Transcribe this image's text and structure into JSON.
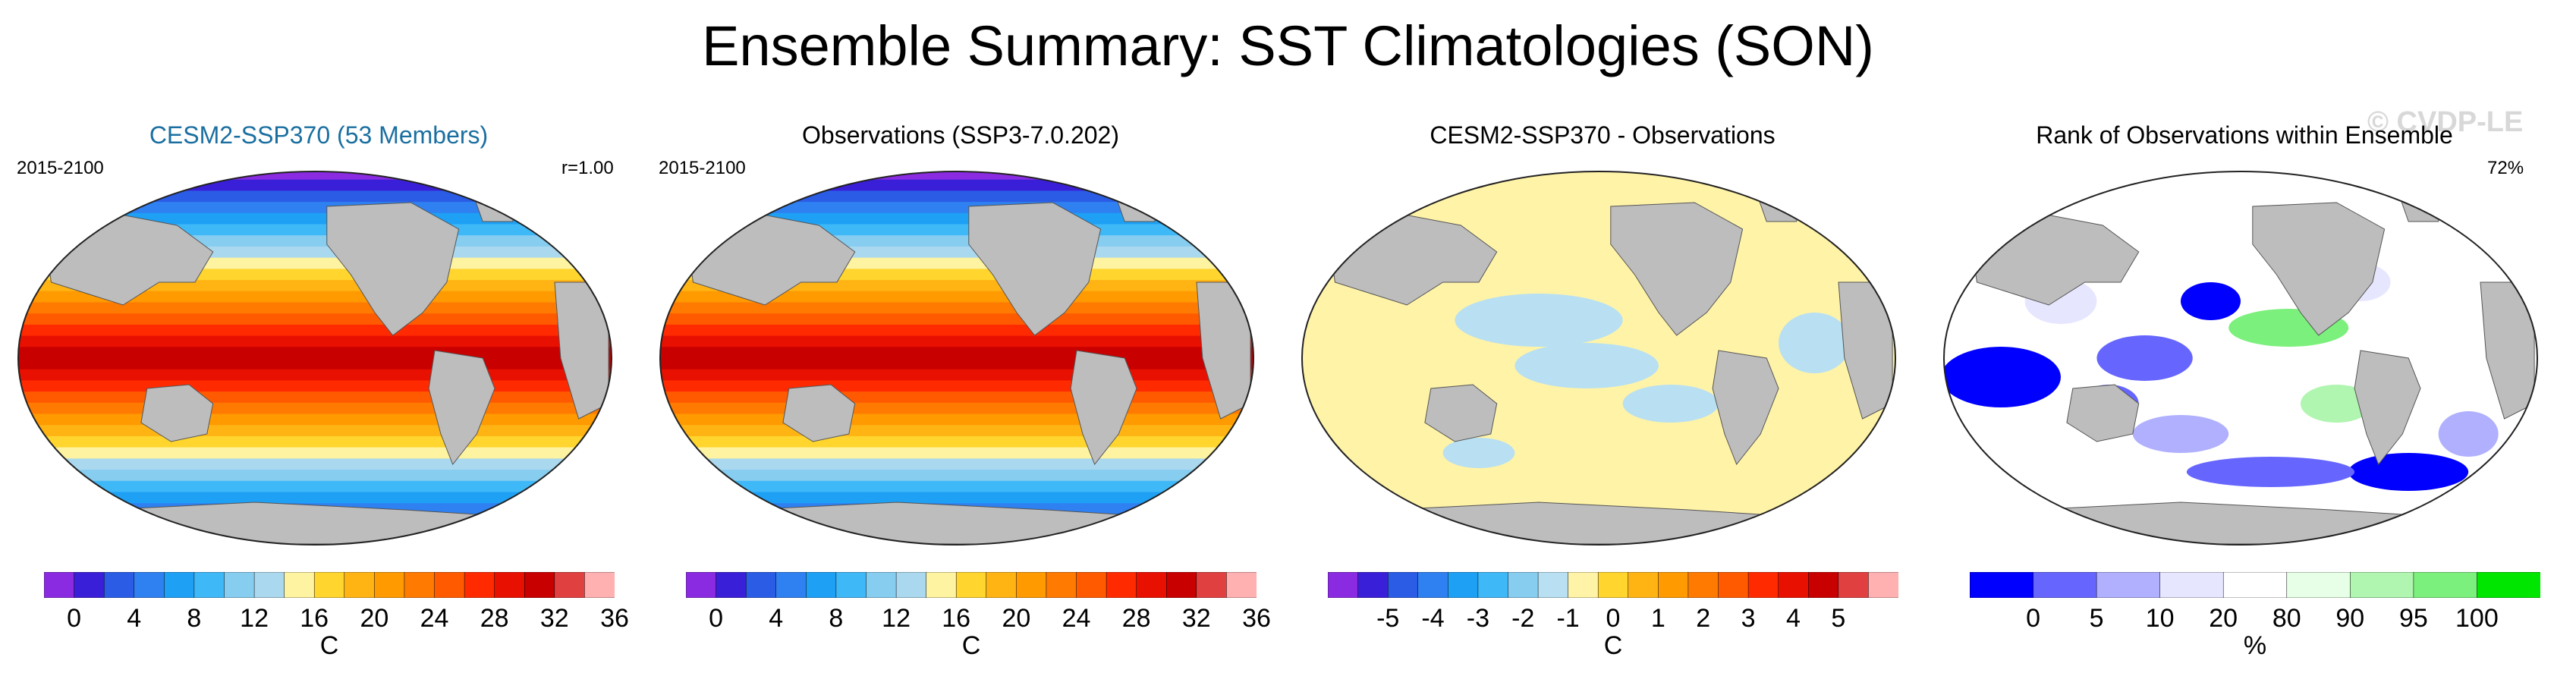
{
  "title": "Ensemble Summary: SST Climatologies (SON)",
  "watermark": "© CVDP-LE",
  "colors": {
    "land": "#bdbdbd",
    "sst_palette": [
      "#8a2be2",
      "#3a1fd8",
      "#2b5ce6",
      "#2f80f0",
      "#1ea0f5",
      "#3fb8f8",
      "#86cdf0",
      "#aad8ef",
      "#fdf3a0",
      "#ffd52e",
      "#ffb414",
      "#ff9a00",
      "#ff7a00",
      "#ff5a00",
      "#ff2a00",
      "#e81000",
      "#c80000",
      "#e04040",
      "#ffb0b0"
    ],
    "diff_palette": [
      "#8a2be2",
      "#3a1fd8",
      "#2b5ce6",
      "#2f80f0",
      "#1ea0f5",
      "#3fb8f8",
      "#86cdf0",
      "#b8e0f2",
      "#fff3a8",
      "#ffd52e",
      "#ffb414",
      "#ff9a00",
      "#ff7a00",
      "#ff5a00",
      "#ff2a00",
      "#e81000",
      "#c80000",
      "#e04040",
      "#ffb0b0"
    ],
    "rank_palette": [
      "#0000ff",
      "#6666ff",
      "#b0b0ff",
      "#e6e6ff",
      "#ffffff",
      "#e6ffe6",
      "#b0f5b0",
      "#7cf07c",
      "#00e600"
    ]
  },
  "panels": [
    {
      "title": "CESM2-SSP370 (53 Members)",
      "title_color": "#1a6fa0",
      "left_text": "2015-2100",
      "right_text": "r=1.00",
      "kind": "sst"
    },
    {
      "title": "Observations (SSP3-7.0.202)",
      "title_color": "#000000",
      "left_text": "2015-2100",
      "right_text": "",
      "kind": "sst"
    },
    {
      "title": "CESM2-SSP370 - Observations",
      "title_color": "#000000",
      "left_text": "",
      "right_text": "",
      "kind": "diff"
    },
    {
      "title": "Rank of Observations within Ensemble",
      "title_color": "#000000",
      "left_text": "",
      "right_text": "72%",
      "kind": "rank"
    }
  ],
  "colorbars": [
    {
      "unit": "C",
      "ticks": [
        "0",
        "4",
        "8",
        "12",
        "16",
        "20",
        "24",
        "28",
        "32",
        "36"
      ]
    },
    {
      "unit": "C",
      "ticks": [
        "0",
        "4",
        "8",
        "12",
        "16",
        "20",
        "24",
        "28",
        "32",
        "36"
      ]
    },
    {
      "unit": "C",
      "ticks": [
        "-5",
        "-4",
        "-3",
        "-2",
        "-1",
        "0",
        "1",
        "2",
        "3",
        "4",
        "5"
      ]
    },
    {
      "unit": "%",
      "ticks": [
        "0",
        "5",
        "10",
        "20",
        "80",
        "90",
        "95",
        "100"
      ]
    }
  ],
  "chart_data": [
    {
      "type": "heatmap",
      "title": "CESM2-SSP370 (53 Members)",
      "period": "2015-2100",
      "pattern_correlation": "r=1.00",
      "variable": "SST climatology (SON)",
      "unit": "C",
      "colorbar_ticks": [
        0,
        4,
        8,
        12,
        16,
        20,
        24,
        28,
        32,
        36
      ]
    },
    {
      "type": "heatmap",
      "title": "Observations (SSP3-7.0.202)",
      "period": "2015-2100",
      "variable": "SST climatology (SON)",
      "unit": "C",
      "colorbar_ticks": [
        0,
        4,
        8,
        12,
        16,
        20,
        24,
        28,
        32,
        36
      ]
    },
    {
      "type": "heatmap",
      "title": "CESM2-SSP370 - Observations",
      "variable": "SST difference",
      "unit": "C",
      "colorbar_ticks": [
        -5,
        -4,
        -3,
        -2,
        -1,
        0,
        1,
        2,
        3,
        4,
        5
      ]
    },
    {
      "type": "heatmap",
      "title": "Rank of Observations within Ensemble",
      "summary": "72%",
      "unit": "%",
      "colorbar_ticks": [
        0,
        5,
        10,
        20,
        80,
        90,
        95,
        100
      ]
    }
  ]
}
